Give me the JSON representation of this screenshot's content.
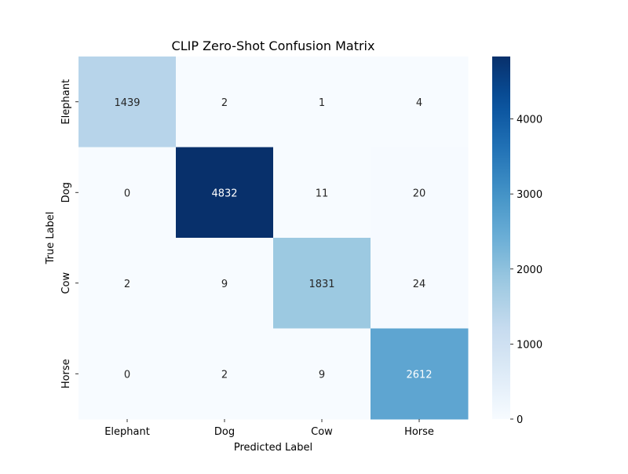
{
  "chart_data": {
    "type": "heatmap",
    "title": "CLIP Zero-Shot Confusion Matrix",
    "xlabel": "Predicted Label",
    "ylabel": "True Label",
    "x_categories": [
      "Elephant",
      "Dog",
      "Cow",
      "Horse"
    ],
    "y_categories": [
      "Elephant",
      "Dog",
      "Cow",
      "Horse"
    ],
    "values": [
      [
        1439,
        2,
        1,
        4
      ],
      [
        0,
        4832,
        11,
        20
      ],
      [
        2,
        9,
        1831,
        24
      ],
      [
        0,
        2,
        9,
        2612
      ]
    ],
    "value_range": [
      0,
      4832
    ],
    "colormap": "Blues",
    "colorbar": {
      "ticks": [
        0,
        1000,
        2000,
        3000,
        4000
      ],
      "tick_labels": [
        "0",
        "1000",
        "2000",
        "3000",
        "4000"
      ]
    },
    "grid": false,
    "legend": "colorbar-right"
  }
}
